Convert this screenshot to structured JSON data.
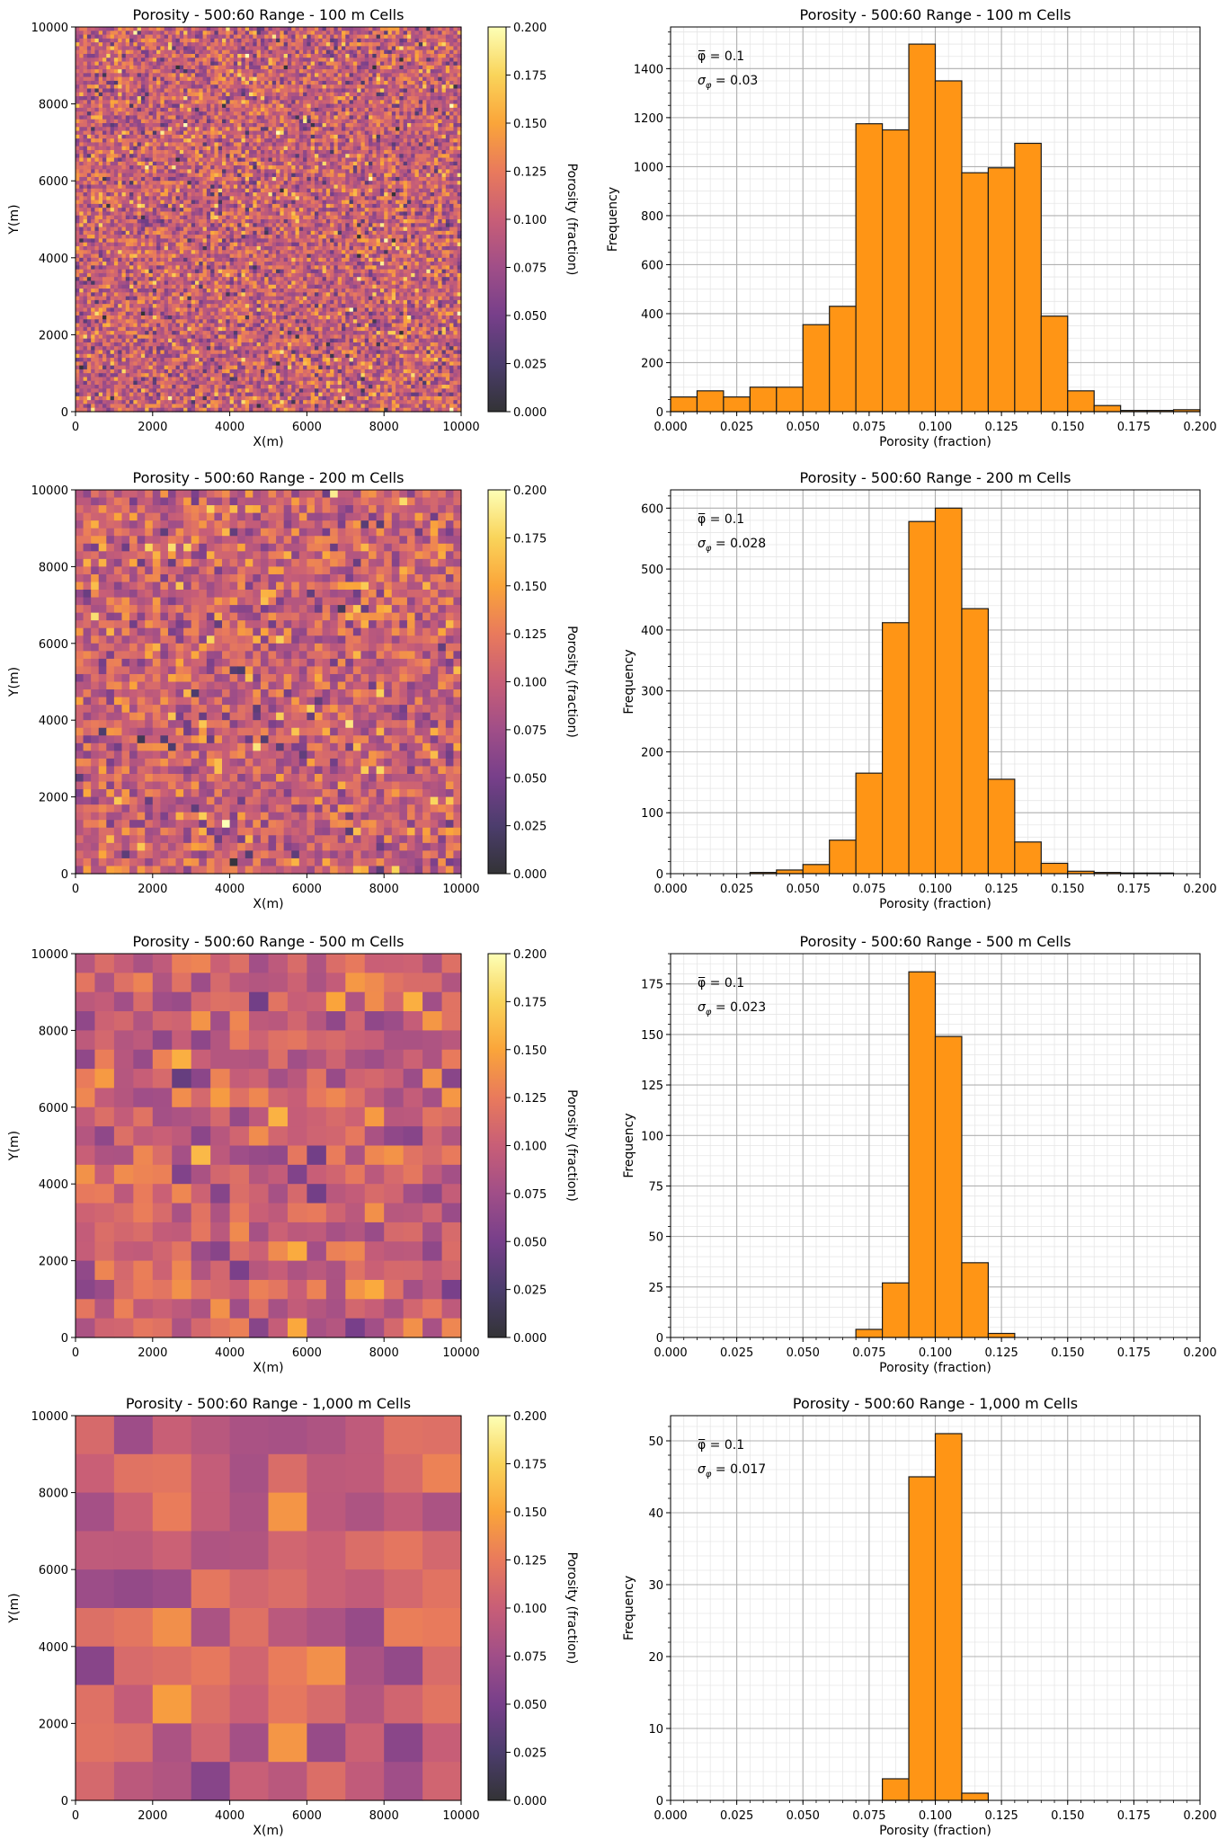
{
  "figure": {
    "background": "#ffffff"
  },
  "colors": {
    "bar_fill": "#ff9515",
    "bar_edge": "#1a1a1a",
    "grid_major": "#b0b0b0",
    "grid_minor": "#e6e6e6"
  },
  "colormap": {
    "name": "inferno",
    "alpha": 0.8,
    "stops": [
      "#000004",
      "#1f0c48",
      "#550f6d",
      "#88226a",
      "#ba3655",
      "#e35933",
      "#f98e09",
      "#f8c931",
      "#fcffa4"
    ]
  },
  "chart_data": [
    {
      "type": "heatmap",
      "title": "Porosity - 500:60 Range - 100 m Cells",
      "xlabel": "X(m)",
      "ylabel": "Y(m)",
      "xlim": [
        0,
        10000
      ],
      "ylim": [
        0,
        10000
      ],
      "xticks": [
        "0",
        "2000",
        "4000",
        "6000",
        "8000",
        "10000"
      ],
      "yticks": [
        "0",
        "2000",
        "4000",
        "6000",
        "8000",
        "10000"
      ],
      "cell_size_m": 100,
      "grid_cells": 100,
      "mean": 0.1,
      "std": 0.03,
      "seed": 11,
      "colorbar": {
        "label": "Porosity (fraction)",
        "range": [
          0,
          0.2
        ],
        "ticks": [
          "0.000",
          "0.025",
          "0.050",
          "0.075",
          "0.100",
          "0.125",
          "0.150",
          "0.175",
          "0.200"
        ]
      }
    },
    {
      "type": "bar",
      "title": "Porosity - 500:60 Range - 100 m Cells",
      "xlabel": "Porosity (fraction)",
      "ylabel": "Frequency",
      "xlim": [
        0,
        0.2
      ],
      "ylim": [
        0,
        1570
      ],
      "xticks": [
        "0.000",
        "0.025",
        "0.050",
        "0.075",
        "0.100",
        "0.125",
        "0.150",
        "0.175",
        "0.200"
      ],
      "yticks": [
        "0",
        "200",
        "400",
        "600",
        "800",
        "1000",
        "1200",
        "1400"
      ],
      "ytick_step": 200,
      "yminor_step": 50,
      "bin_edges": [
        0,
        0.01,
        0.02,
        0.03,
        0.04,
        0.05,
        0.06,
        0.07,
        0.08,
        0.09,
        0.1,
        0.11,
        0.12,
        0.13,
        0.14,
        0.15,
        0.16,
        0.17,
        0.18,
        0.19,
        0.2
      ],
      "values": [
        60,
        85,
        60,
        100,
        100,
        355,
        430,
        1175,
        1150,
        1500,
        1350,
        975,
        995,
        1095,
        390,
        85,
        25,
        5,
        5,
        8
      ],
      "annotation": {
        "mean": "φ̅ = 0.1",
        "std_symbol": "σ",
        "std_sub": "φ",
        "std_value": " = 0.03"
      }
    },
    {
      "type": "heatmap",
      "title": "Porosity - 500:60 Range - 200 m Cells",
      "xlabel": "X(m)",
      "ylabel": "Y(m)",
      "xlim": [
        0,
        10000
      ],
      "ylim": [
        0,
        10000
      ],
      "xticks": [
        "0",
        "2000",
        "4000",
        "6000",
        "8000",
        "10000"
      ],
      "yticks": [
        "0",
        "2000",
        "4000",
        "6000",
        "8000",
        "10000"
      ],
      "cell_size_m": 200,
      "grid_cells": 50,
      "mean": 0.1,
      "std": 0.028,
      "seed": 23,
      "colorbar": {
        "label": "Porosity (fraction)",
        "range": [
          0,
          0.2
        ],
        "ticks": [
          "0.000",
          "0.025",
          "0.050",
          "0.075",
          "0.100",
          "0.125",
          "0.150",
          "0.175",
          "0.200"
        ]
      }
    },
    {
      "type": "bar",
      "title": "Porosity - 500:60 Range - 200 m Cells",
      "xlabel": "Porosity (fraction)",
      "ylabel": "Frequency",
      "xlim": [
        0,
        0.2
      ],
      "ylim": [
        0,
        630
      ],
      "xticks": [
        "0.000",
        "0.025",
        "0.050",
        "0.075",
        "0.100",
        "0.125",
        "0.150",
        "0.175",
        "0.200"
      ],
      "yticks": [
        "0",
        "100",
        "200",
        "300",
        "400",
        "500",
        "600"
      ],
      "ytick_step": 100,
      "yminor_step": 20,
      "bin_edges": [
        0,
        0.01,
        0.02,
        0.03,
        0.04,
        0.05,
        0.06,
        0.07,
        0.08,
        0.09,
        0.1,
        0.11,
        0.12,
        0.13,
        0.14,
        0.15,
        0.16,
        0.17,
        0.18,
        0.19,
        0.2
      ],
      "values": [
        0,
        0,
        0,
        2,
        6,
        15,
        55,
        165,
        412,
        578,
        600,
        435,
        155,
        52,
        17,
        4,
        2,
        1,
        1,
        0
      ],
      "annotation": {
        "mean": "φ̅ = 0.1",
        "std_symbol": "σ",
        "std_sub": "φ",
        "std_value": " = 0.028"
      }
    },
    {
      "type": "heatmap",
      "title": "Porosity - 500:60 Range - 500 m Cells",
      "xlabel": "X(m)",
      "ylabel": "Y(m)",
      "xlim": [
        0,
        10000
      ],
      "ylim": [
        0,
        10000
      ],
      "xticks": [
        "0",
        "2000",
        "4000",
        "6000",
        "8000",
        "10000"
      ],
      "yticks": [
        "0",
        "2000",
        "4000",
        "6000",
        "8000",
        "10000"
      ],
      "cell_size_m": 500,
      "grid_cells": 20,
      "mean": 0.1,
      "std": 0.023,
      "seed": 37,
      "colorbar": {
        "label": "Porosity (fraction)",
        "range": [
          0,
          0.2
        ],
        "ticks": [
          "0.000",
          "0.025",
          "0.050",
          "0.075",
          "0.100",
          "0.125",
          "0.150",
          "0.175",
          "0.200"
        ]
      }
    },
    {
      "type": "bar",
      "title": "Porosity - 500:60 Range - 500 m Cells",
      "xlabel": "Porosity (fraction)",
      "ylabel": "Frequency",
      "xlim": [
        0,
        0.2
      ],
      "ylim": [
        0,
        190
      ],
      "xticks": [
        "0.000",
        "0.025",
        "0.050",
        "0.075",
        "0.100",
        "0.125",
        "0.150",
        "0.175",
        "0.200"
      ],
      "yticks": [
        "0",
        "25",
        "50",
        "75",
        "100",
        "125",
        "150",
        "175"
      ],
      "ytick_step": 25,
      "yminor_step": 5,
      "bin_edges": [
        0,
        0.01,
        0.02,
        0.03,
        0.04,
        0.05,
        0.06,
        0.07,
        0.08,
        0.09,
        0.1,
        0.11,
        0.12,
        0.13,
        0.14,
        0.15,
        0.16,
        0.17,
        0.18,
        0.19,
        0.2
      ],
      "values": [
        0,
        0,
        0,
        0,
        0,
        0,
        0,
        4,
        27,
        181,
        149,
        37,
        2,
        0,
        0,
        0,
        0,
        0,
        0,
        0
      ],
      "annotation": {
        "mean": "φ̅ = 0.1",
        "std_symbol": "σ",
        "std_sub": "φ",
        "std_value": " = 0.023"
      }
    },
    {
      "type": "heatmap",
      "title": "Porosity - 500:60 Range - 1,000 m Cells",
      "xlabel": "X(m)",
      "ylabel": "Y(m)",
      "xlim": [
        0,
        10000
      ],
      "ylim": [
        0,
        10000
      ],
      "xticks": [
        "0",
        "2000",
        "4000",
        "6000",
        "8000",
        "10000"
      ],
      "yticks": [
        "0",
        "2000",
        "4000",
        "6000",
        "8000",
        "10000"
      ],
      "cell_size_m": 1000,
      "grid_cells": 10,
      "mean": 0.1,
      "std": 0.017,
      "seed": 51,
      "colorbar": {
        "label": "Porosity (fraction)",
        "range": [
          0,
          0.2
        ],
        "ticks": [
          "0.000",
          "0.025",
          "0.050",
          "0.075",
          "0.100",
          "0.125",
          "0.150",
          "0.175",
          "0.200"
        ]
      }
    },
    {
      "type": "bar",
      "title": "Porosity - 500:60 Range - 1,000 m Cells",
      "xlabel": "Porosity (fraction)",
      "ylabel": "Frequency",
      "xlim": [
        0,
        0.2
      ],
      "ylim": [
        0,
        53.5
      ],
      "xticks": [
        "0.000",
        "0.025",
        "0.050",
        "0.075",
        "0.100",
        "0.125",
        "0.150",
        "0.175",
        "0.200"
      ],
      "yticks": [
        "0",
        "10",
        "20",
        "30",
        "40",
        "50"
      ],
      "ytick_step": 10,
      "yminor_step": 2,
      "bin_edges": [
        0,
        0.01,
        0.02,
        0.03,
        0.04,
        0.05,
        0.06,
        0.07,
        0.08,
        0.09,
        0.1,
        0.11,
        0.12,
        0.13,
        0.14,
        0.15,
        0.16,
        0.17,
        0.18,
        0.19,
        0.2
      ],
      "values": [
        0,
        0,
        0,
        0,
        0,
        0,
        0,
        0,
        3,
        45,
        51,
        1,
        0,
        0,
        0,
        0,
        0,
        0,
        0,
        0
      ],
      "annotation": {
        "mean": "φ̅ = 0.1",
        "std_symbol": "σ",
        "std_sub": "φ",
        "std_value": " = 0.017"
      }
    }
  ]
}
